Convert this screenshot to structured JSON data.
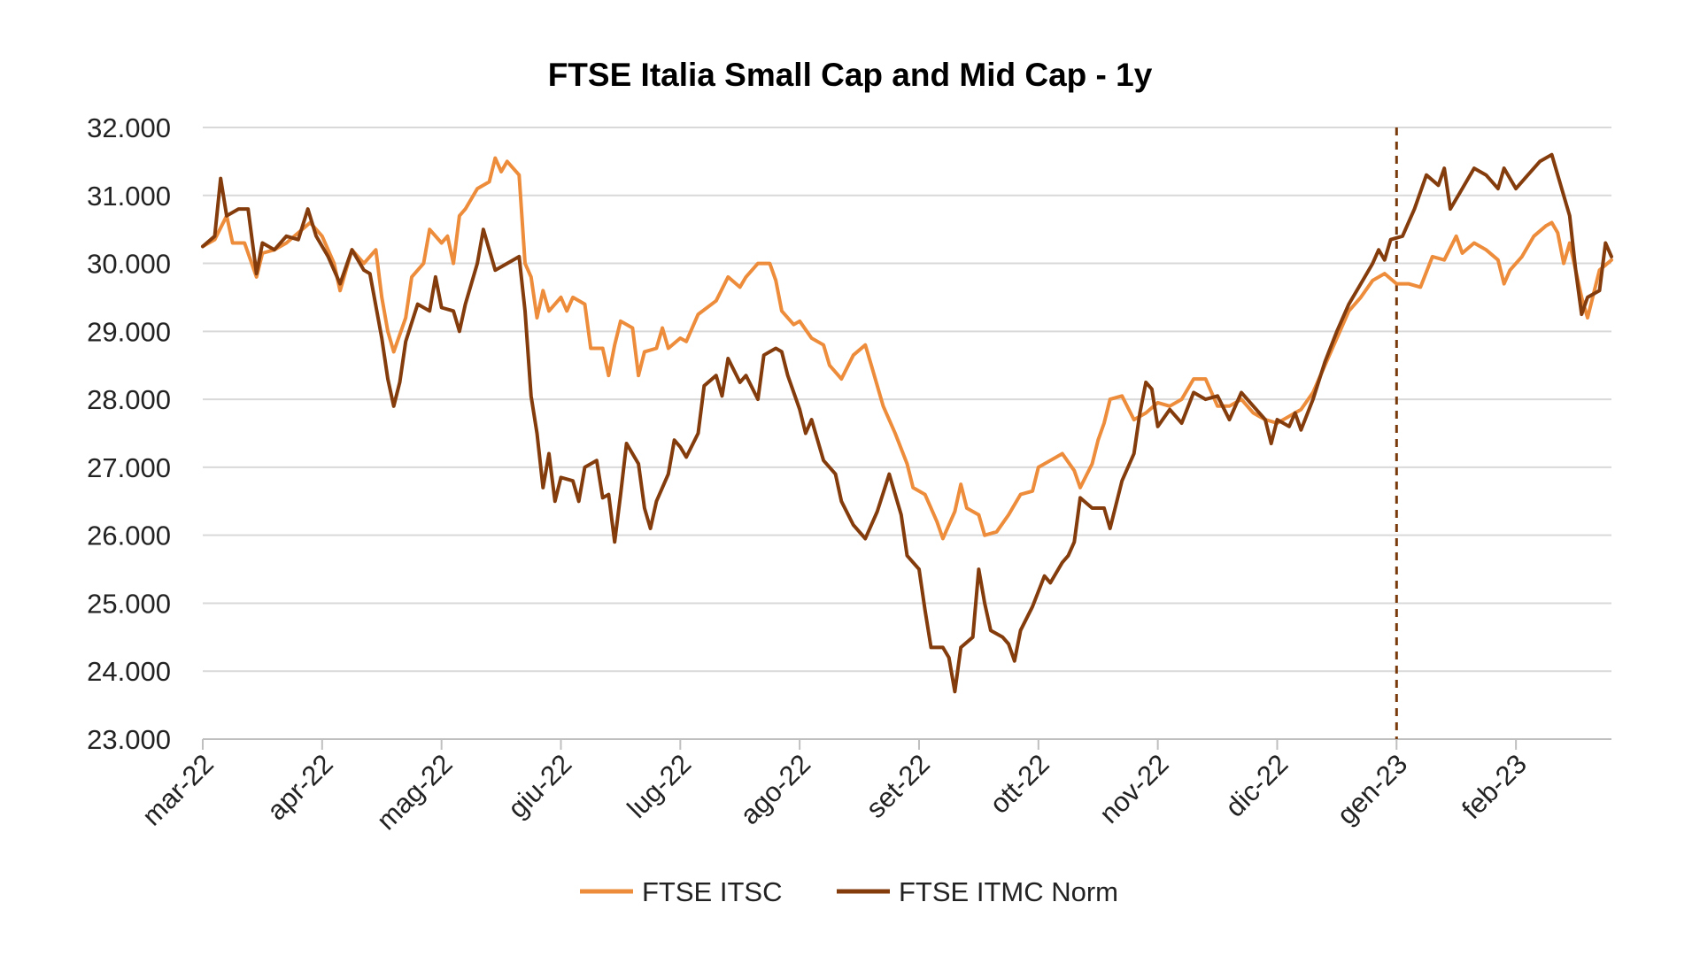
{
  "chart_data": {
    "type": "line",
    "title": "FTSE Italia Small Cap and Mid Cap - 1y",
    "xlabel": "",
    "ylabel": "",
    "ylim": [
      23000,
      32000
    ],
    "y_ticks": [
      "23.000",
      "24.000",
      "25.000",
      "26.000",
      "27.000",
      "28.000",
      "29.000",
      "30.000",
      "31.000",
      "32.000"
    ],
    "x_tick_labels": [
      "mar-22",
      "apr-22",
      "mag-22",
      "giu-22",
      "lug-22",
      "ago-22",
      "set-22",
      "ott-22",
      "nov-22",
      "dic-22",
      "gen-23",
      "feb-23"
    ],
    "grid": true,
    "legend_position": "bottom",
    "vertical_marker": {
      "x": "gen-23",
      "style": "dashed",
      "color": "#7a3b0c"
    },
    "series": [
      {
        "name": "FTSE ITSC",
        "color": "#ed8c3b",
        "points": [
          [
            0,
            30250
          ],
          [
            0.1,
            30350
          ],
          [
            0.2,
            30700
          ],
          [
            0.25,
            30300
          ],
          [
            0.35,
            30300
          ],
          [
            0.45,
            29800
          ],
          [
            0.5,
            30150
          ],
          [
            0.6,
            30200
          ],
          [
            0.7,
            30300
          ],
          [
            0.8,
            30450
          ],
          [
            0.9,
            30600
          ],
          [
            1.0,
            30400
          ],
          [
            1.1,
            30000
          ],
          [
            1.15,
            29600
          ],
          [
            1.25,
            30200
          ],
          [
            1.35,
            30000
          ],
          [
            1.45,
            30200
          ],
          [
            1.5,
            29500
          ],
          [
            1.55,
            29000
          ],
          [
            1.6,
            28700
          ],
          [
            1.7,
            29200
          ],
          [
            1.75,
            29800
          ],
          [
            1.85,
            30000
          ],
          [
            1.9,
            30500
          ],
          [
            2.0,
            30300
          ],
          [
            2.05,
            30400
          ],
          [
            2.1,
            30000
          ],
          [
            2.15,
            30700
          ],
          [
            2.2,
            30800
          ],
          [
            2.3,
            31100
          ],
          [
            2.4,
            31200
          ],
          [
            2.45,
            31550
          ],
          [
            2.5,
            31350
          ],
          [
            2.55,
            31500
          ],
          [
            2.65,
            31300
          ],
          [
            2.7,
            30000
          ],
          [
            2.75,
            29800
          ],
          [
            2.8,
            29200
          ],
          [
            2.85,
            29600
          ],
          [
            2.9,
            29300
          ],
          [
            3.0,
            29500
          ],
          [
            3.05,
            29300
          ],
          [
            3.1,
            29500
          ],
          [
            3.2,
            29400
          ],
          [
            3.25,
            28750
          ],
          [
            3.35,
            28750
          ],
          [
            3.4,
            28350
          ],
          [
            3.45,
            28800
          ],
          [
            3.5,
            29150
          ],
          [
            3.6,
            29050
          ],
          [
            3.65,
            28350
          ],
          [
            3.7,
            28700
          ],
          [
            3.8,
            28750
          ],
          [
            3.85,
            29050
          ],
          [
            3.9,
            28750
          ],
          [
            4.0,
            28900
          ],
          [
            4.05,
            28850
          ],
          [
            4.15,
            29250
          ],
          [
            4.3,
            29450
          ],
          [
            4.4,
            29800
          ],
          [
            4.5,
            29650
          ],
          [
            4.55,
            29800
          ],
          [
            4.65,
            30000
          ],
          [
            4.75,
            30000
          ],
          [
            4.8,
            29750
          ],
          [
            4.85,
            29300
          ],
          [
            4.95,
            29100
          ],
          [
            5.0,
            29150
          ],
          [
            5.1,
            28900
          ],
          [
            5.2,
            28800
          ],
          [
            5.25,
            28500
          ],
          [
            5.35,
            28300
          ],
          [
            5.45,
            28650
          ],
          [
            5.55,
            28800
          ],
          [
            5.6,
            28500
          ],
          [
            5.7,
            27900
          ],
          [
            5.8,
            27500
          ],
          [
            5.9,
            27050
          ],
          [
            5.95,
            26700
          ],
          [
            6.05,
            26600
          ],
          [
            6.15,
            26200
          ],
          [
            6.2,
            25950
          ],
          [
            6.3,
            26350
          ],
          [
            6.35,
            26750
          ],
          [
            6.4,
            26400
          ],
          [
            6.5,
            26300
          ],
          [
            6.55,
            26000
          ],
          [
            6.65,
            26050
          ],
          [
            6.75,
            26300
          ],
          [
            6.85,
            26600
          ],
          [
            6.95,
            26650
          ],
          [
            7.0,
            27000
          ],
          [
            7.1,
            27100
          ],
          [
            7.2,
            27200
          ],
          [
            7.3,
            26950
          ],
          [
            7.35,
            26700
          ],
          [
            7.45,
            27050
          ],
          [
            7.5,
            27400
          ],
          [
            7.55,
            27650
          ],
          [
            7.6,
            28000
          ],
          [
            7.7,
            28050
          ],
          [
            7.8,
            27700
          ],
          [
            7.9,
            27800
          ],
          [
            8.0,
            27950
          ],
          [
            8.1,
            27900
          ],
          [
            8.2,
            28000
          ],
          [
            8.3,
            28300
          ],
          [
            8.4,
            28300
          ],
          [
            8.5,
            27900
          ],
          [
            8.6,
            27900
          ],
          [
            8.7,
            28000
          ],
          [
            8.8,
            27800
          ],
          [
            8.9,
            27700
          ],
          [
            9.0,
            27650
          ],
          [
            9.1,
            27750
          ],
          [
            9.2,
            27850
          ],
          [
            9.3,
            28100
          ],
          [
            9.4,
            28500
          ],
          [
            9.5,
            28900
          ],
          [
            9.6,
            29300
          ],
          [
            9.7,
            29500
          ],
          [
            9.8,
            29750
          ],
          [
            9.9,
            29850
          ],
          [
            10.0,
            29700
          ],
          [
            10.1,
            29700
          ],
          [
            10.2,
            29650
          ],
          [
            10.3,
            30100
          ],
          [
            10.4,
            30050
          ],
          [
            10.5,
            30400
          ],
          [
            10.55,
            30150
          ],
          [
            10.65,
            30300
          ],
          [
            10.75,
            30200
          ],
          [
            10.85,
            30050
          ],
          [
            10.9,
            29700
          ],
          [
            10.95,
            29900
          ],
          [
            11.05,
            30100
          ],
          [
            11.15,
            30400
          ],
          [
            11.25,
            30550
          ],
          [
            11.3,
            30600
          ],
          [
            11.35,
            30450
          ],
          [
            11.4,
            30000
          ],
          [
            11.45,
            30300
          ],
          [
            11.5,
            29900
          ],
          [
            11.55,
            29500
          ],
          [
            11.6,
            29200
          ],
          [
            11.7,
            29900
          ],
          [
            11.8,
            30050
          ]
        ]
      },
      {
        "name": "FTSE ITMC Norm",
        "color": "#843c0c",
        "points": [
          [
            0,
            30250
          ],
          [
            0.1,
            30400
          ],
          [
            0.15,
            31250
          ],
          [
            0.2,
            30700
          ],
          [
            0.3,
            30800
          ],
          [
            0.38,
            30800
          ],
          [
            0.45,
            29850
          ],
          [
            0.5,
            30300
          ],
          [
            0.6,
            30200
          ],
          [
            0.7,
            30400
          ],
          [
            0.8,
            30350
          ],
          [
            0.88,
            30800
          ],
          [
            0.95,
            30400
          ],
          [
            1.05,
            30100
          ],
          [
            1.15,
            29700
          ],
          [
            1.25,
            30200
          ],
          [
            1.35,
            29900
          ],
          [
            1.4,
            29850
          ],
          [
            1.5,
            28900
          ],
          [
            1.55,
            28300
          ],
          [
            1.6,
            27900
          ],
          [
            1.65,
            28250
          ],
          [
            1.7,
            28850
          ],
          [
            1.8,
            29400
          ],
          [
            1.9,
            29300
          ],
          [
            1.95,
            29800
          ],
          [
            2.0,
            29350
          ],
          [
            2.1,
            29300
          ],
          [
            2.15,
            29000
          ],
          [
            2.2,
            29400
          ],
          [
            2.3,
            30000
          ],
          [
            2.35,
            30500
          ],
          [
            2.4,
            30200
          ],
          [
            2.45,
            29900
          ],
          [
            2.55,
            30000
          ],
          [
            2.65,
            30100
          ],
          [
            2.7,
            29300
          ],
          [
            2.75,
            28050
          ],
          [
            2.8,
            27500
          ],
          [
            2.85,
            26700
          ],
          [
            2.9,
            27200
          ],
          [
            2.95,
            26500
          ],
          [
            3.0,
            26850
          ],
          [
            3.1,
            26800
          ],
          [
            3.15,
            26500
          ],
          [
            3.2,
            27000
          ],
          [
            3.3,
            27100
          ],
          [
            3.35,
            26550
          ],
          [
            3.4,
            26600
          ],
          [
            3.45,
            25900
          ],
          [
            3.5,
            26600
          ],
          [
            3.55,
            27350
          ],
          [
            3.65,
            27050
          ],
          [
            3.7,
            26400
          ],
          [
            3.75,
            26100
          ],
          [
            3.8,
            26500
          ],
          [
            3.9,
            26900
          ],
          [
            3.95,
            27400
          ],
          [
            4.0,
            27300
          ],
          [
            4.05,
            27150
          ],
          [
            4.15,
            27500
          ],
          [
            4.2,
            28200
          ],
          [
            4.3,
            28350
          ],
          [
            4.35,
            28050
          ],
          [
            4.4,
            28600
          ],
          [
            4.5,
            28250
          ],
          [
            4.55,
            28350
          ],
          [
            4.65,
            28000
          ],
          [
            4.7,
            28650
          ],
          [
            4.8,
            28750
          ],
          [
            4.85,
            28700
          ],
          [
            4.9,
            28350
          ],
          [
            5.0,
            27850
          ],
          [
            5.05,
            27500
          ],
          [
            5.1,
            27700
          ],
          [
            5.2,
            27100
          ],
          [
            5.3,
            26900
          ],
          [
            5.35,
            26500
          ],
          [
            5.45,
            26150
          ],
          [
            5.55,
            25950
          ],
          [
            5.65,
            26350
          ],
          [
            5.75,
            26900
          ],
          [
            5.85,
            26300
          ],
          [
            5.9,
            25700
          ],
          [
            6.0,
            25500
          ],
          [
            6.05,
            24900
          ],
          [
            6.1,
            24350
          ],
          [
            6.2,
            24350
          ],
          [
            6.25,
            24200
          ],
          [
            6.3,
            23700
          ],
          [
            6.35,
            24350
          ],
          [
            6.45,
            24500
          ],
          [
            6.5,
            25500
          ],
          [
            6.55,
            25000
          ],
          [
            6.6,
            24600
          ],
          [
            6.7,
            24500
          ],
          [
            6.75,
            24400
          ],
          [
            6.8,
            24150
          ],
          [
            6.85,
            24600
          ],
          [
            6.95,
            24950
          ],
          [
            7.05,
            25400
          ],
          [
            7.1,
            25300
          ],
          [
            7.2,
            25600
          ],
          [
            7.25,
            25700
          ],
          [
            7.3,
            25900
          ],
          [
            7.35,
            26550
          ],
          [
            7.45,
            26400
          ],
          [
            7.55,
            26400
          ],
          [
            7.6,
            26100
          ],
          [
            7.7,
            26800
          ],
          [
            7.8,
            27200
          ],
          [
            7.85,
            27800
          ],
          [
            7.9,
            28250
          ],
          [
            7.95,
            28150
          ],
          [
            8.0,
            27600
          ],
          [
            8.1,
            27850
          ],
          [
            8.2,
            27650
          ],
          [
            8.3,
            28100
          ],
          [
            8.4,
            28000
          ],
          [
            8.5,
            28050
          ],
          [
            8.6,
            27700
          ],
          [
            8.7,
            28100
          ],
          [
            8.8,
            27900
          ],
          [
            8.9,
            27700
          ],
          [
            8.95,
            27350
          ],
          [
            9.0,
            27700
          ],
          [
            9.1,
            27600
          ],
          [
            9.15,
            27800
          ],
          [
            9.2,
            27550
          ],
          [
            9.3,
            28000
          ],
          [
            9.4,
            28550
          ],
          [
            9.5,
            29000
          ],
          [
            9.6,
            29400
          ],
          [
            9.7,
            29700
          ],
          [
            9.8,
            30000
          ],
          [
            9.85,
            30200
          ],
          [
            9.9,
            30050
          ],
          [
            9.95,
            30350
          ],
          [
            10.05,
            30400
          ],
          [
            10.15,
            30800
          ],
          [
            10.25,
            31300
          ],
          [
            10.35,
            31150
          ],
          [
            10.4,
            31400
          ],
          [
            10.45,
            30800
          ],
          [
            10.55,
            31100
          ],
          [
            10.65,
            31400
          ],
          [
            10.75,
            31300
          ],
          [
            10.85,
            31100
          ],
          [
            10.9,
            31400
          ],
          [
            11.0,
            31100
          ],
          [
            11.1,
            31300
          ],
          [
            11.2,
            31500
          ],
          [
            11.3,
            31600
          ],
          [
            11.35,
            31300
          ],
          [
            11.45,
            30700
          ],
          [
            11.5,
            29900
          ],
          [
            11.55,
            29250
          ],
          [
            11.6,
            29500
          ],
          [
            11.7,
            29600
          ],
          [
            11.75,
            30300
          ],
          [
            11.8,
            30100
          ]
        ]
      }
    ]
  }
}
